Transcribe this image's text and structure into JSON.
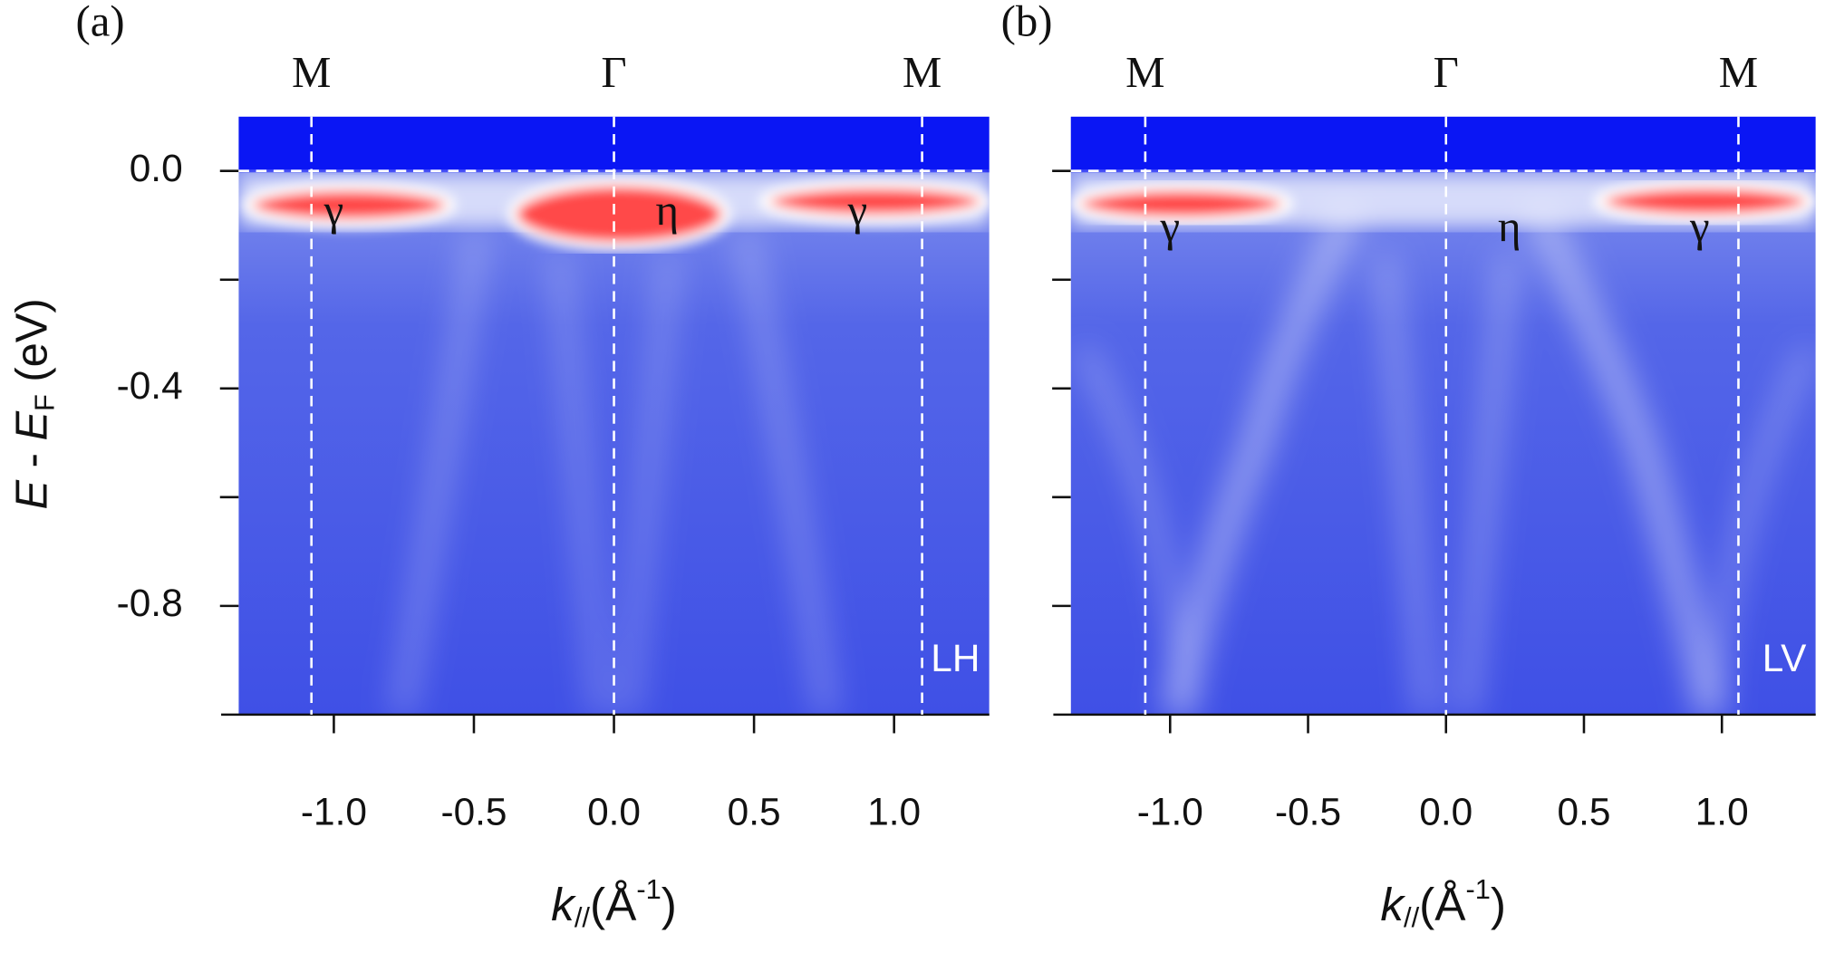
{
  "chart_data": [
    {
      "type": "heatmap",
      "panel_label": "(a)",
      "xlabel": [
        "k",
        "//",
        "(Å",
        "-1",
        ")"
      ],
      "ylabel": [
        "E",
        " - ",
        "E",
        "F",
        " (eV)"
      ],
      "xlim": [
        -1.34,
        1.34
      ],
      "ylim": [
        -1.0,
        0.1
      ],
      "xticks": [
        {
          "value": -1.0,
          "label": "-1.0"
        },
        -0.5,
        {
          "value": 0,
          "label": "0.0"
        },
        0.5,
        {
          "value": 1.0,
          "label": "1.0"
        }
      ],
      "yticks": [
        {
          "value": 0,
          "label": "0.0"
        },
        -0.4,
        -0.8
      ],
      "yminor": [
        -0.2,
        -0.6
      ],
      "fermi_level": 0,
      "high_symmetry": [
        {
          "label": "M",
          "x": -1.08
        },
        {
          "label": "Γ",
          "x": 0
        },
        {
          "label": "M",
          "x": 1.1
        }
      ],
      "annotations": [
        {
          "text": "γ",
          "x": -1.0,
          "y": -0.08
        },
        {
          "text": "η",
          "x": 0.19,
          "y": -0.08
        },
        {
          "text": "γ",
          "x": 0.87,
          "y": -0.08
        }
      ],
      "polarization": "LH"
    },
    {
      "type": "heatmap",
      "panel_label": "(b)",
      "xlabel": [
        "k",
        "//",
        "(Å",
        "-1",
        ")"
      ],
      "xlim": [
        -1.36,
        1.34
      ],
      "ylim": [
        -1.0,
        0.1
      ],
      "xticks": [
        {
          "value": -1.0,
          "label": "-1.0"
        },
        -0.5,
        {
          "value": 0,
          "label": "0.0"
        },
        0.5,
        {
          "value": 1.0,
          "label": "1.0"
        }
      ],
      "yminor": [
        0,
        -0.2,
        -0.4,
        -0.6,
        -0.8
      ],
      "fermi_level": 0,
      "high_symmetry": [
        {
          "label": "M",
          "x": -1.09
        },
        {
          "label": "Γ",
          "x": 0
        },
        {
          "label": "M",
          "x": 1.06
        }
      ],
      "annotations": [
        {
          "text": "γ",
          "x": -1.0,
          "y": -0.11
        },
        {
          "text": "η",
          "x": 0.23,
          "y": -0.11
        },
        {
          "text": "γ",
          "x": 0.92,
          "y": -0.11
        }
      ],
      "polarization": "LV"
    }
  ]
}
